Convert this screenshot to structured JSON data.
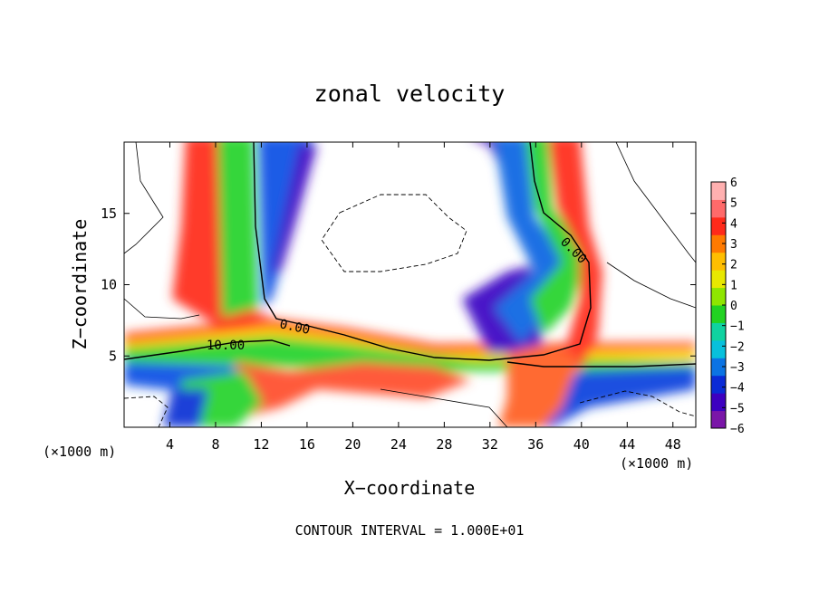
{
  "chart_data": {
    "type": "heatmap",
    "title": "zonal velocity",
    "xlabel": "X−coordinate",
    "ylabel": "Z−coordinate",
    "x_unit_left": "(×1000 m)",
    "x_unit_right": "(×1000 m)",
    "xlim": [
      0,
      50
    ],
    "ylim": [
      0,
      20
    ],
    "x_ticks": [
      4,
      8,
      12,
      16,
      20,
      24,
      28,
      32,
      36,
      40,
      44,
      48
    ],
    "x_tick_labels": [
      "4",
      "8",
      "12",
      "16",
      "20",
      "24",
      "28",
      "32",
      "36",
      "40",
      "44",
      "48"
    ],
    "y_ticks": [
      5,
      10,
      15
    ],
    "y_tick_labels": [
      "5",
      "10",
      "15"
    ],
    "colorbar": {
      "min": -6,
      "max": 6,
      "ticks": [
        6,
        5,
        4,
        3,
        2,
        1,
        0,
        -1,
        -2,
        -3,
        -4,
        -5,
        -6
      ],
      "tick_labels": [
        "6",
        "5",
        "4",
        "3",
        "2",
        "1",
        "0",
        "−1",
        "−2",
        "−3",
        "−4",
        "−5",
        "−6"
      ],
      "colors": [
        "#7a16a8",
        "#3d00c0",
        "#0a2bd6",
        "#0b73e3",
        "#07c0dc",
        "#0fd2a0",
        "#22d222",
        "#8fe600",
        "#e8e800",
        "#ffbe00",
        "#ff7a00",
        "#ff2a1a",
        "#ff6a6a",
        "#ffb0b0"
      ]
    },
    "contour_labels": [
      "10.00",
      "0.00",
      "0.00"
    ],
    "contour_interval_text": "CONTOUR INTERVAL = 1.000E+01"
  }
}
